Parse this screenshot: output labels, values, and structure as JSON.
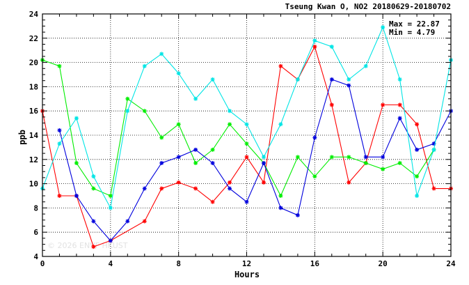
{
  "chart_data": {
    "type": "line",
    "title": "Tseung Kwan O, NO2 20180629-20180702",
    "xlabel": "Hours",
    "ylabel": "ppb",
    "xlim": [
      0,
      24
    ],
    "ylim": [
      4,
      24
    ],
    "xticks": [
      0,
      4,
      8,
      12,
      16,
      20,
      24
    ],
    "yticks": [
      4,
      6,
      8,
      10,
      12,
      14,
      16,
      18,
      20,
      22,
      24
    ],
    "grid": true,
    "stats": {
      "max": "Max = 22.87",
      "min": "Min =  4.79"
    },
    "watermark": "© 2026  ENVF HKUST",
    "series": [
      {
        "color": "#ff0000",
        "x": [
          0,
          1,
          2,
          3,
          4,
          6,
          7,
          8,
          9,
          10,
          11,
          12,
          13,
          14,
          15,
          16,
          17,
          18,
          19,
          20,
          21,
          22,
          23,
          24
        ],
        "values": [
          16.0,
          9.0,
          9.0,
          4.8,
          5.3,
          6.9,
          9.6,
          10.1,
          9.6,
          8.5,
          10.1,
          12.2,
          10.1,
          19.7,
          18.6,
          21.3,
          16.5,
          10.1,
          11.7,
          16.5,
          16.5,
          14.9,
          9.6,
          9.6
        ]
      },
      {
        "color": "#00ee00",
        "x": [
          0,
          1,
          2,
          3,
          4,
          5,
          6,
          7,
          8,
          9,
          10,
          11,
          12,
          13,
          14,
          15,
          16,
          17,
          18,
          19,
          20,
          21,
          22,
          23
        ],
        "values": [
          20.2,
          19.7,
          11.7,
          9.6,
          9.0,
          17.0,
          16.0,
          13.8,
          14.9,
          11.7,
          12.8,
          14.9,
          13.3,
          11.7,
          9.0,
          12.2,
          10.6,
          12.2,
          12.2,
          11.7,
          11.2,
          11.7,
          10.6,
          12.8
        ]
      },
      {
        "color": "#0000dd",
        "x": [
          1,
          2,
          3,
          4,
          5,
          6,
          7,
          8,
          9,
          10,
          11,
          12,
          13,
          14,
          15,
          16,
          17,
          18,
          19,
          20,
          21,
          22,
          23,
          24
        ],
        "values": [
          14.4,
          9.0,
          6.9,
          5.3,
          6.9,
          9.6,
          11.7,
          12.2,
          12.8,
          11.7,
          9.6,
          8.5,
          11.7,
          8.0,
          7.4,
          13.8,
          18.6,
          18.1,
          12.2,
          12.2,
          15.4,
          12.8,
          13.3,
          16.0
        ]
      },
      {
        "color": "#00e5e5",
        "x": [
          0,
          1,
          2,
          3,
          4,
          5,
          6,
          7,
          8,
          9,
          10,
          11,
          12,
          13,
          14,
          15,
          16,
          17,
          18,
          19,
          20,
          21,
          22,
          23,
          24
        ],
        "values": [
          9.6,
          13.3,
          15.4,
          10.6,
          8.0,
          16.0,
          19.7,
          20.7,
          19.1,
          17.0,
          18.6,
          16.0,
          14.9,
          12.2,
          14.9,
          18.6,
          21.8,
          21.3,
          18.6,
          19.7,
          22.9,
          18.6,
          9.0,
          12.8,
          20.2
        ]
      }
    ]
  }
}
